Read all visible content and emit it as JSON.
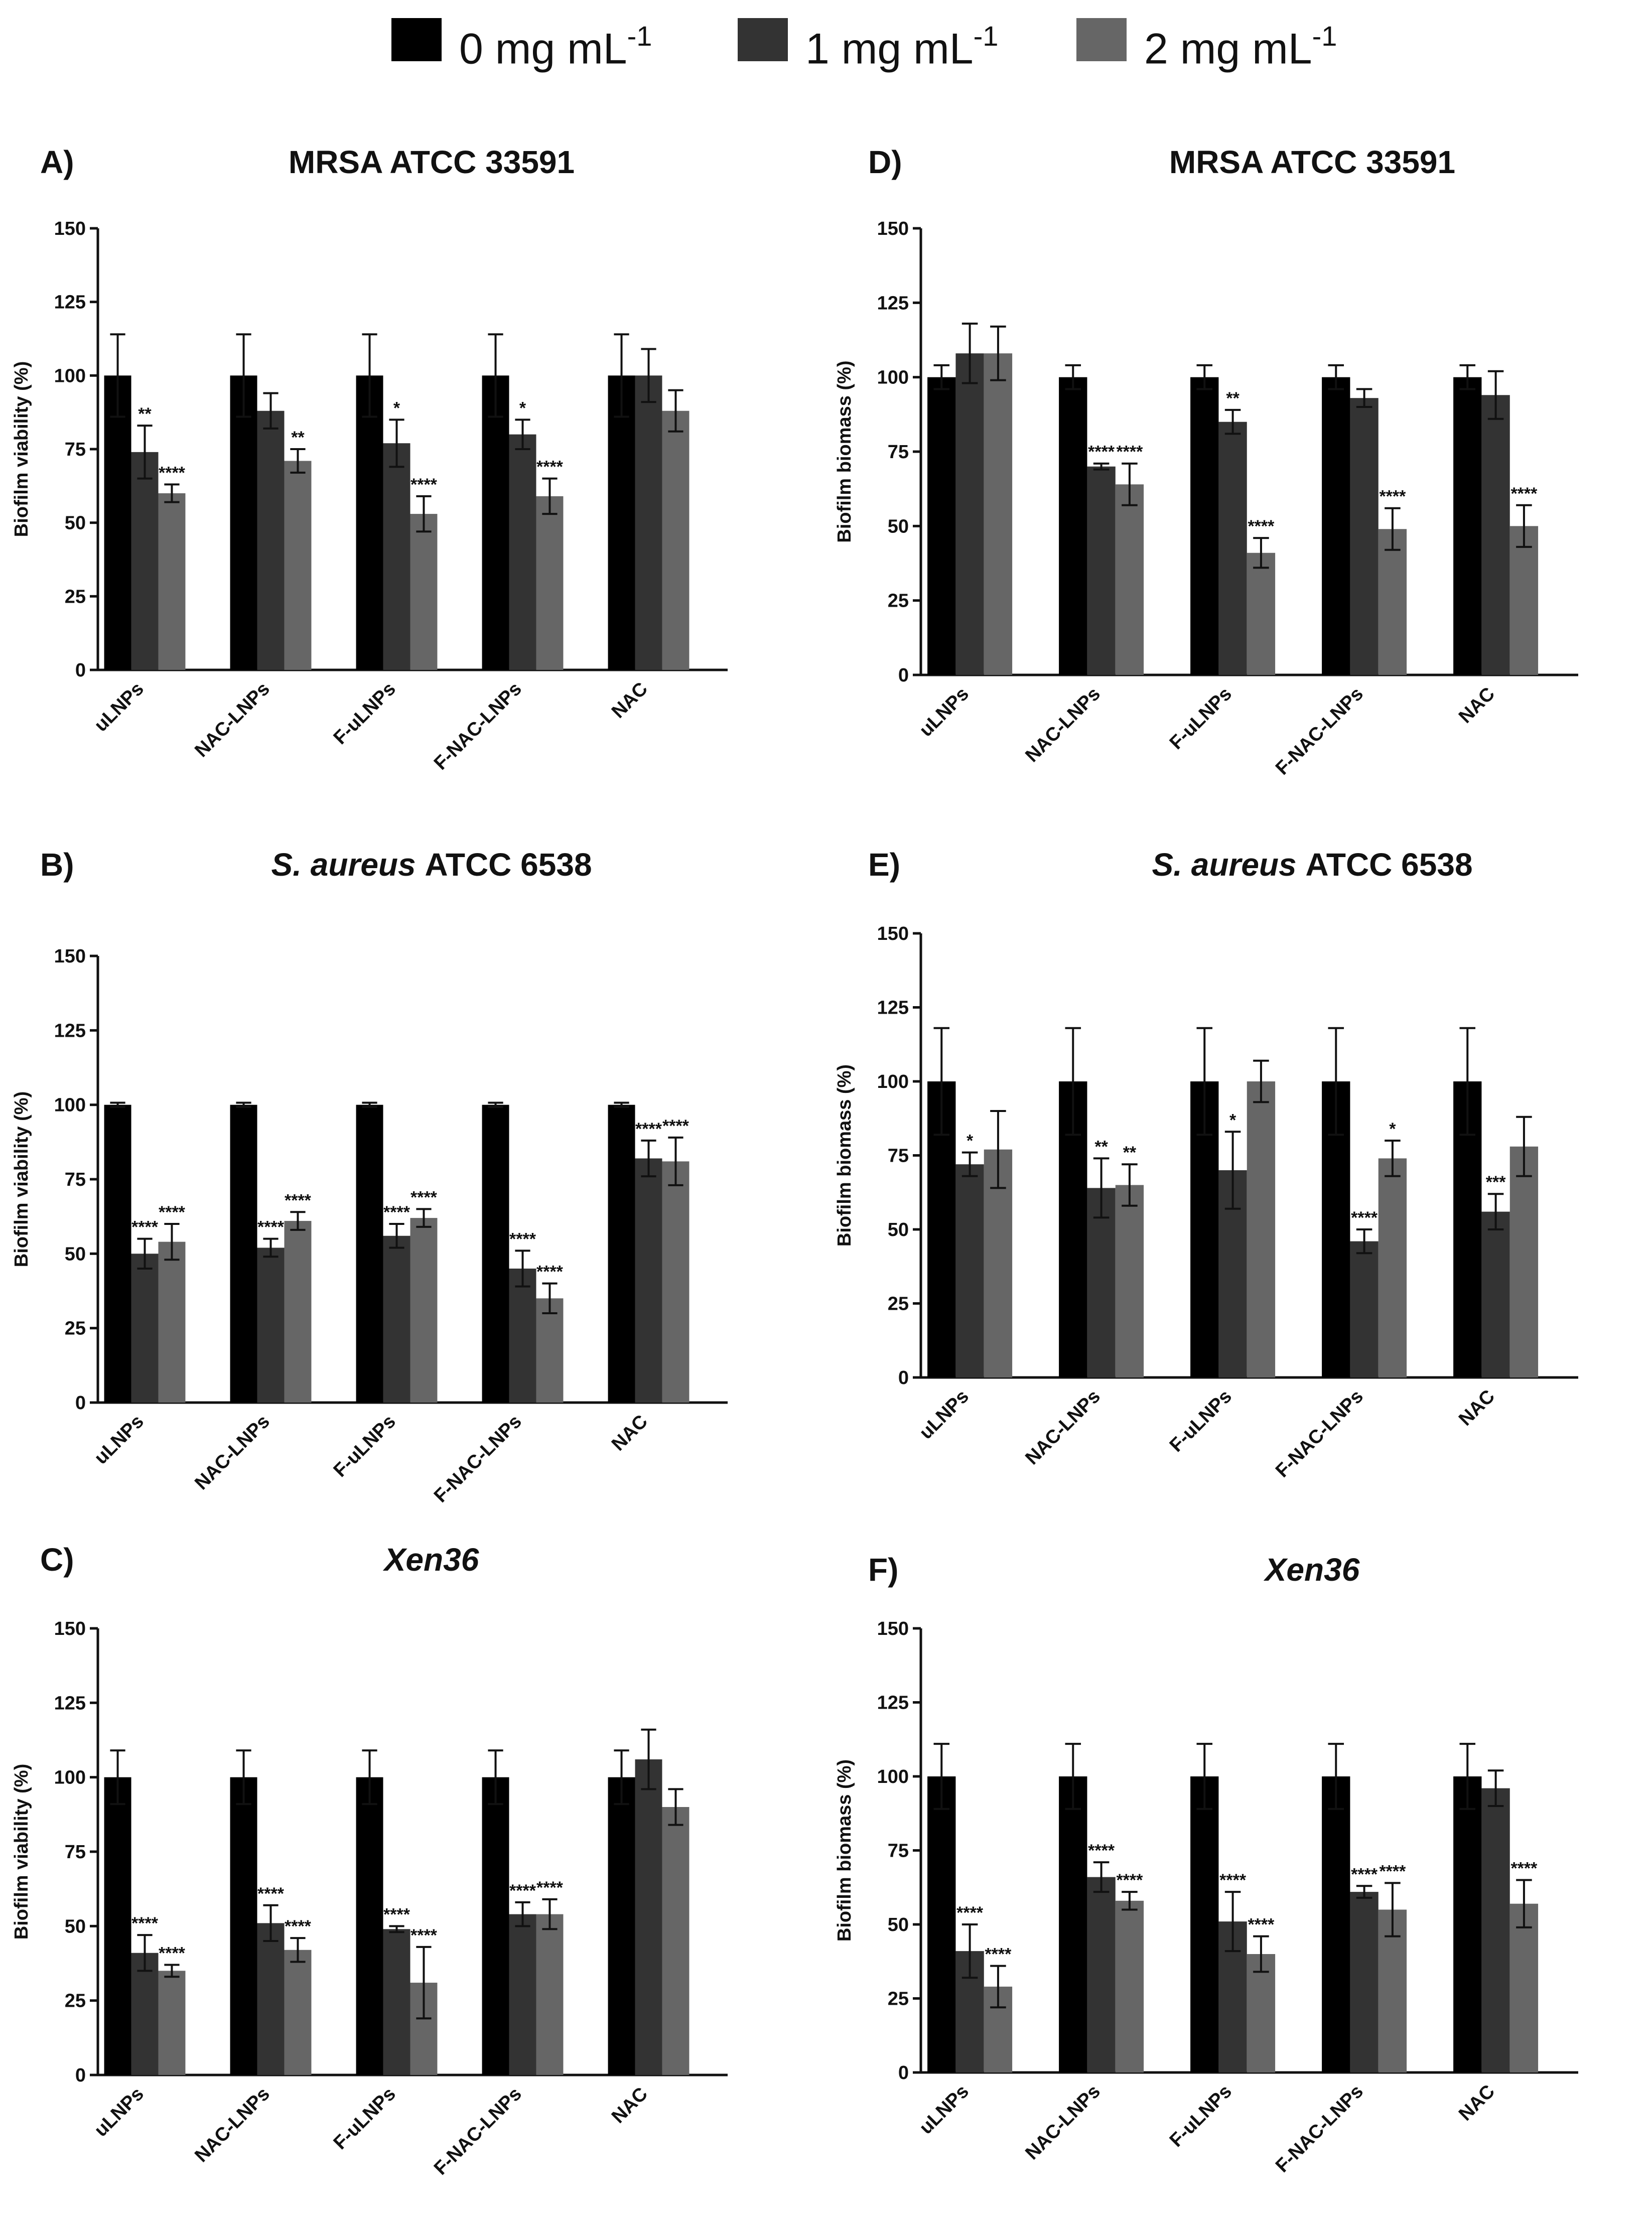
{
  "legend": [
    {
      "label": "0 mg mL",
      "sup": "-1",
      "color": "#000000"
    },
    {
      "label": "1 mg mL",
      "sup": "-1",
      "color": "#333333"
    },
    {
      "label": "2 mg mL",
      "sup": "-1",
      "color": "#666666"
    }
  ],
  "chart_data": [
    {
      "type": "bar",
      "panel": "A)",
      "title": "MRSA ATCC 33591",
      "title_italic": "",
      "ylabel": "Biofilm viability (%)",
      "ylim": [
        0,
        150
      ],
      "yticks": [
        0,
        25,
        50,
        75,
        100,
        125,
        150
      ],
      "categories": [
        "uLNPs",
        "NAC-LNPs",
        "F-uLNPs",
        "F-NAC-LNPs",
        "NAC"
      ],
      "series": [
        {
          "name": "0 mg mL-1",
          "values": [
            100,
            100,
            100,
            100,
            100
          ],
          "errors": [
            14,
            14,
            14,
            14,
            14
          ],
          "significance": [
            "",
            "",
            "",
            "",
            ""
          ]
        },
        {
          "name": "1 mg mL-1",
          "values": [
            74,
            88,
            77,
            80,
            100
          ],
          "errors": [
            9,
            6,
            8,
            5,
            9
          ],
          "significance": [
            "**",
            "",
            "*",
            "*",
            ""
          ]
        },
        {
          "name": "2 mg mL-1",
          "values": [
            60,
            71,
            53,
            59,
            88
          ],
          "errors": [
            3,
            4,
            6,
            6,
            7
          ],
          "significance": [
            "****",
            "**",
            "****",
            "****",
            ""
          ]
        }
      ]
    },
    {
      "type": "bar",
      "panel": "D)",
      "title": "MRSA ATCC 33591",
      "title_italic": "",
      "ylabel": "Biofilm biomass (%)",
      "ylim": [
        0,
        150
      ],
      "yticks": [
        0,
        25,
        50,
        75,
        100,
        125,
        150
      ],
      "categories": [
        "uLNPs",
        "NAC-LNPs",
        "F-uLNPs",
        "F-NAC-LNPs",
        "NAC"
      ],
      "series": [
        {
          "name": "0 mg mL-1",
          "values": [
            100,
            100,
            100,
            100,
            100
          ],
          "errors": [
            4,
            4,
            4,
            4,
            4
          ],
          "significance": [
            "",
            "",
            "",
            "",
            ""
          ]
        },
        {
          "name": "1 mg mL-1",
          "values": [
            108,
            70,
            85,
            93,
            94
          ],
          "errors": [
            10,
            1,
            4,
            3,
            8
          ],
          "significance": [
            "",
            "****",
            "**",
            "",
            ""
          ]
        },
        {
          "name": "2 mg mL-1",
          "values": [
            108,
            64,
            41,
            49,
            50
          ],
          "errors": [
            9,
            7,
            5,
            7,
            7
          ],
          "significance": [
            "",
            "****",
            "****",
            "****",
            "****"
          ]
        }
      ]
    },
    {
      "type": "bar",
      "panel": "B)",
      "title": "ATCC 6538",
      "title_italic": "S. aureus",
      "ylabel": "Biofilm viability (%)",
      "ylim": [
        0,
        150
      ],
      "yticks": [
        0,
        25,
        50,
        75,
        100,
        125,
        150
      ],
      "categories": [
        "uLNPs",
        "NAC-LNPs",
        "F-uLNPs",
        "F-NAC-LNPs",
        "NAC"
      ],
      "series": [
        {
          "name": "0 mg mL-1",
          "values": [
            100,
            100,
            100,
            100,
            100
          ],
          "errors": [
            0.7,
            0.7,
            0.7,
            0.7,
            0.7
          ],
          "significance": [
            "",
            "",
            "",
            "",
            ""
          ]
        },
        {
          "name": "1 mg mL-1",
          "values": [
            50,
            52,
            56,
            45,
            82
          ],
          "errors": [
            5,
            3,
            4,
            6,
            6
          ],
          "significance": [
            "****",
            "****",
            "****",
            "****",
            "****"
          ]
        },
        {
          "name": "2 mg mL-1",
          "values": [
            54,
            61,
            62,
            35,
            81
          ],
          "errors": [
            6,
            3,
            3,
            5,
            8
          ],
          "significance": [
            "****",
            "****",
            "****",
            "****",
            "****"
          ]
        }
      ]
    },
    {
      "type": "bar",
      "panel": "E)",
      "title": "ATCC 6538",
      "title_italic": "S. aureus",
      "ylabel": "Biofilm biomass (%)",
      "ylim": [
        0,
        150
      ],
      "yticks": [
        0,
        25,
        50,
        75,
        100,
        125,
        150
      ],
      "categories": [
        "uLNPs",
        "NAC-LNPs",
        "F-uLNPs",
        "F-NAC-LNPs",
        "NAC"
      ],
      "series": [
        {
          "name": "0 mg mL-1",
          "values": [
            100,
            100,
            100,
            100,
            100
          ],
          "errors": [
            18,
            18,
            18,
            18,
            18
          ],
          "significance": [
            "",
            "",
            "",
            "",
            ""
          ]
        },
        {
          "name": "1 mg mL-1",
          "values": [
            72,
            64,
            70,
            46,
            56
          ],
          "errors": [
            4,
            10,
            13,
            4,
            6
          ],
          "significance": [
            "*",
            "**",
            "*",
            "****",
            "***"
          ]
        },
        {
          "name": "2 mg mL-1",
          "values": [
            77,
            65,
            100,
            74,
            78
          ],
          "errors": [
            13,
            7,
            7,
            6,
            10
          ],
          "significance": [
            "",
            "**",
            "",
            "*",
            ""
          ]
        }
      ]
    },
    {
      "type": "bar",
      "panel": "C)",
      "title": "",
      "title_italic": "Xen36",
      "ylabel": "Biofilm viability (%)",
      "ylim": [
        0,
        150
      ],
      "yticks": [
        0,
        25,
        50,
        75,
        100,
        125,
        150
      ],
      "categories": [
        "uLNPs",
        "NAC-LNPs",
        "F-uLNPs",
        "F-NAC-LNPs",
        "NAC"
      ],
      "series": [
        {
          "name": "0 mg mL-1",
          "values": [
            100,
            100,
            100,
            100,
            100
          ],
          "errors": [
            9,
            9,
            9,
            9,
            9
          ],
          "significance": [
            "",
            "",
            "",
            "",
            ""
          ]
        },
        {
          "name": "1 mg mL-1",
          "values": [
            41,
            51,
            49,
            54,
            106
          ],
          "errors": [
            6,
            6,
            1,
            4,
            10
          ],
          "significance": [
            "****",
            "****",
            "****",
            "****",
            ""
          ]
        },
        {
          "name": "2 mg mL-1",
          "values": [
            35,
            42,
            31,
            54,
            90
          ],
          "errors": [
            2,
            4,
            12,
            5,
            6
          ],
          "significance": [
            "****",
            "****",
            "****",
            "****",
            ""
          ]
        }
      ]
    },
    {
      "type": "bar",
      "panel": "F)",
      "title": "",
      "title_italic": "Xen36",
      "ylabel": "Biofilm biomass (%)",
      "ylim": [
        0,
        150
      ],
      "yticks": [
        0,
        25,
        50,
        75,
        100,
        125,
        150
      ],
      "categories": [
        "uLNPs",
        "NAC-LNPs",
        "F-uLNPs",
        "F-NAC-LNPs",
        "NAC"
      ],
      "series": [
        {
          "name": "0 mg mL-1",
          "values": [
            100,
            100,
            100,
            100,
            100
          ],
          "errors": [
            11,
            11,
            11,
            11,
            11
          ],
          "significance": [
            "",
            "",
            "",
            "",
            ""
          ]
        },
        {
          "name": "1 mg mL-1",
          "values": [
            41,
            66,
            51,
            61,
            96
          ],
          "errors": [
            9,
            5,
            10,
            2,
            6
          ],
          "significance": [
            "****",
            "****",
            "****",
            "****",
            ""
          ]
        },
        {
          "name": "2 mg mL-1",
          "values": [
            29,
            58,
            40,
            55,
            57
          ],
          "errors": [
            7,
            3,
            6,
            9,
            8
          ],
          "significance": [
            "****",
            "****",
            "****",
            "****",
            "****"
          ]
        }
      ]
    }
  ]
}
